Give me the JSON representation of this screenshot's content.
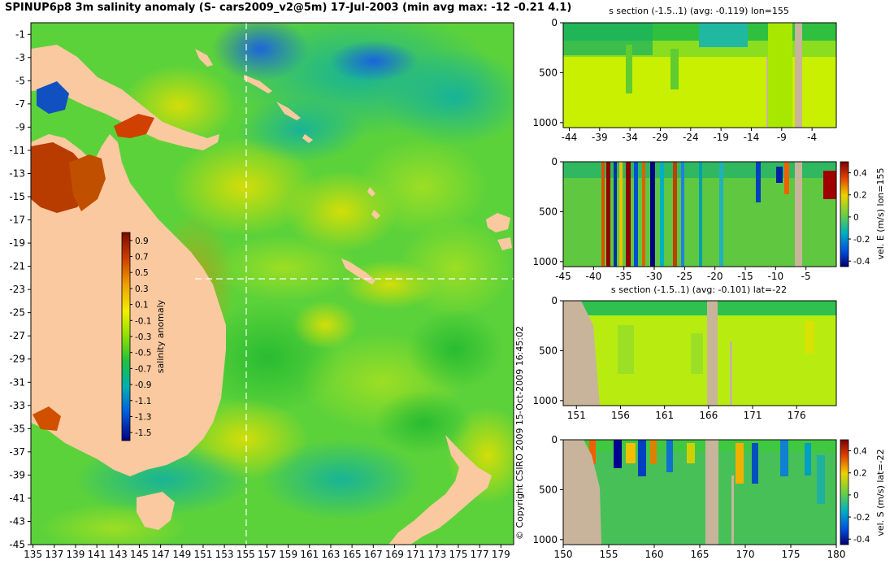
{
  "title": "SPINUP6p8 3m salinity anomaly (S- cars2009_v2@5m) 17-Jul-2003 (min avg max: -12 -0.21 4.1)",
  "copyright": "© Copyright CSIRO 2009   15-Oct-2009 16:45:02",
  "colors": {
    "land": "#fac9a0",
    "land_section": "#c8b49a",
    "crosshair": "#ffffff"
  },
  "chart_data": [
    {
      "type": "heatmap",
      "title": "",
      "xlabel": "",
      "ylabel": "",
      "x_ticks": [
        "135",
        "137",
        "139",
        "141",
        "143",
        "145",
        "147",
        "149",
        "151",
        "153",
        "155",
        "157",
        "159",
        "161",
        "163",
        "165",
        "167",
        "169",
        "171",
        "173",
        "175",
        "177",
        "179"
      ],
      "y_ticks": [
        "-1",
        "-3",
        "-5",
        "-7",
        "-9",
        "-11",
        "-13",
        "-15",
        "-17",
        "-19",
        "-21",
        "-23",
        "-25",
        "-27",
        "-29",
        "-31",
        "-33",
        "-35",
        "-37",
        "-39",
        "-41",
        "-43",
        "-45"
      ],
      "xlim": [
        134.8,
        180.2
      ],
      "ylim": [
        -45,
        0
      ],
      "crosshair": {
        "lon": 155,
        "lat": -22
      },
      "colorbar": {
        "label": "salinity anomaly",
        "ticks": [
          "0.9",
          "0.7",
          "0.5",
          "0.3",
          "0.1",
          "-0.1",
          "-0.3",
          "-0.5",
          "-0.7",
          "-0.9",
          "-1.1",
          "-1.3",
          "-1.5"
        ],
        "range": [
          -1.5,
          0.9
        ]
      }
    },
    {
      "type": "heatmap",
      "title": "s section (-1.5..1) (avg: -0.119) lon=155",
      "x_ticks": [
        "-44",
        "-39",
        "-34",
        "-29",
        "-24",
        "-19",
        "-14",
        "-9",
        "-4"
      ],
      "y_ticks": [
        "0",
        "500",
        "1000"
      ],
      "xlim": [
        -45,
        0
      ],
      "ylim": [
        1050,
        0
      ]
    },
    {
      "type": "heatmap",
      "title": "",
      "ylabel": "vel. E (m/s) lon=155",
      "x_ticks": [
        "-45",
        "-40",
        "-35",
        "-30",
        "-25",
        "-20",
        "-15",
        "-10",
        "-5"
      ],
      "y_ticks": [
        "0",
        "500",
        "1000"
      ],
      "xlim": [
        -45,
        0
      ],
      "ylim": [
        1050,
        0
      ],
      "colorbar": {
        "ticks": [
          "0.4",
          "0.2",
          "0",
          "-0.2",
          "-0.4"
        ],
        "range": [
          -0.4,
          0.4
        ]
      }
    },
    {
      "type": "heatmap",
      "title": "s section (-1.5..1) (avg: -0.101) lat=-22",
      "x_ticks": [
        "151",
        "156",
        "161",
        "166",
        "171",
        "176"
      ],
      "y_ticks": [
        "0",
        "500",
        "1000"
      ],
      "xlim": [
        150,
        180
      ],
      "ylim": [
        1050,
        0
      ]
    },
    {
      "type": "heatmap",
      "title": "",
      "ylabel": "vel. S (m/s) lat=-22",
      "x_ticks": [
        "150",
        "155",
        "160",
        "165",
        "170",
        "175",
        "180"
      ],
      "y_ticks": [
        "0",
        "500",
        "1000"
      ],
      "xlim": [
        150,
        180
      ],
      "ylim": [
        1050,
        0
      ],
      "colorbar": {
        "ticks": [
          "0.4",
          "0.2",
          "0",
          "-0.2",
          "-0.4"
        ],
        "range": [
          -0.4,
          0.4
        ]
      }
    }
  ]
}
